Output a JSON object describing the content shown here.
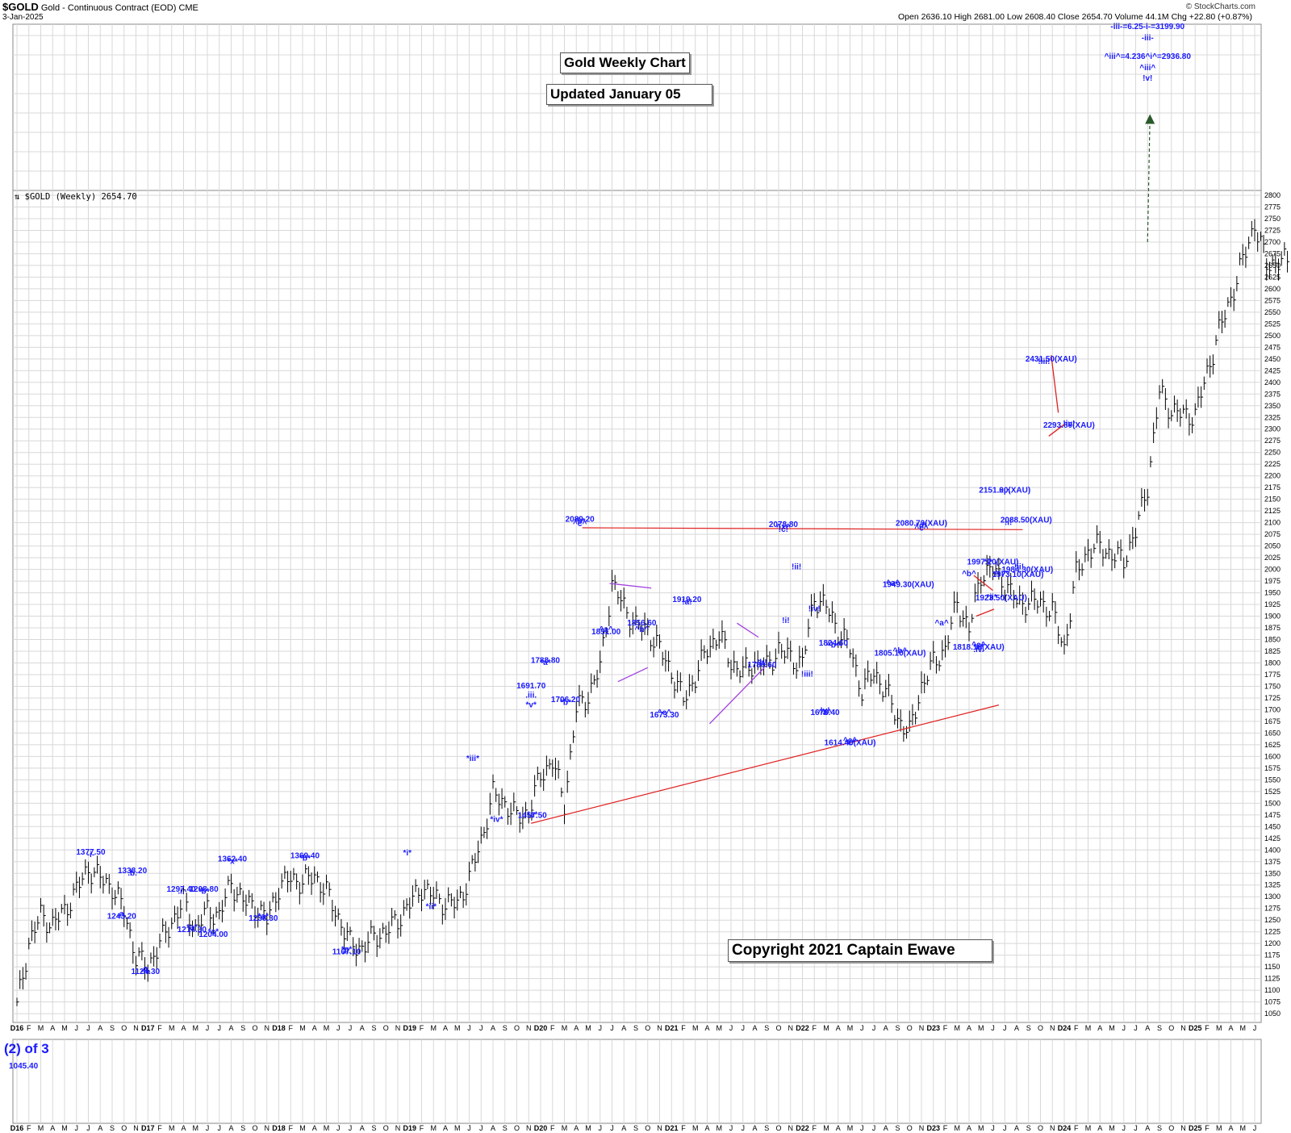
{
  "header": {
    "symbol": "$GOLD",
    "name": "Gold - Continuous Contract (EOD)",
    "exchange": "CME",
    "date": "3-Jan-2025",
    "brand": "© StockCharts.com",
    "ohlc": "Open 2636.10  High 2681.00  Low 2608.40  Close 2654.70  Volume 44.1M  Chg +22.80 (+0.87%)",
    "legend": "$GOLD (Weekly) 2654.70"
  },
  "boxes": {
    "title": "Gold Weekly Chart",
    "updated": "Updated January 05",
    "copyright": "Copyright 2021 Captain Ewave"
  },
  "lower_panel": {
    "wave": "(2) of 3",
    "value": "1045.40"
  },
  "colors": {
    "annotation": "#1a1aff",
    "price_bar": "#000000",
    "resistance": "#e02020",
    "triangle": "#a040e0",
    "projection": "#2a5a2a",
    "grid": "#d8d8d8"
  },
  "chart_data": {
    "type": "line",
    "title": "Gold Weekly Chart",
    "subtitle": "Updated January 05",
    "ylim": [
      1045,
      2800
    ],
    "yticks": [
      1050,
      1075,
      1100,
      1125,
      1150,
      1175,
      1200,
      1225,
      1250,
      1275,
      1300,
      1325,
      1350,
      1375,
      1400,
      1425,
      1450,
      1475,
      1500,
      1525,
      1550,
      1575,
      1600,
      1625,
      1650,
      1675,
      1700,
      1725,
      1750,
      1775,
      1800,
      1825,
      1850,
      1875,
      1900,
      1925,
      1950,
      1975,
      2000,
      2025,
      2050,
      2075,
      2100,
      2125,
      2150,
      2175,
      2200,
      2225,
      2250,
      2275,
      2300,
      2325,
      2350,
      2375,
      2400,
      2425,
      2450,
      2475,
      2500,
      2525,
      2550,
      2575,
      2600,
      2625,
      2650,
      2675,
      2700,
      2725,
      2750,
      2775,
      2800
    ],
    "xticks": [
      "D16",
      "F",
      "M",
      "A",
      "M",
      "J",
      "J",
      "A",
      "S",
      "O",
      "N",
      "D17",
      "F",
      "M",
      "A",
      "M",
      "J",
      "J",
      "A",
      "S",
      "O",
      "N",
      "D18",
      "F",
      "M",
      "A",
      "M",
      "J",
      "J",
      "A",
      "S",
      "O",
      "N",
      "D19",
      "F",
      "M",
      "A",
      "M",
      "J",
      "J",
      "A",
      "S",
      "O",
      "N",
      "D20",
      "F",
      "M",
      "A",
      "M",
      "J",
      "J",
      "A",
      "S",
      "O",
      "N",
      "D21",
      "F",
      "M",
      "A",
      "M",
      "J",
      "J",
      "A",
      "S",
      "O",
      "N",
      "D22",
      "F",
      "M",
      "A",
      "M",
      "J",
      "J",
      "A",
      "S",
      "O",
      "N",
      "D23",
      "F",
      "M",
      "A",
      "M",
      "J",
      "J",
      "A",
      "S",
      "O",
      "N",
      "D24",
      "F",
      "M",
      "A",
      "M",
      "J",
      "J",
      "A",
      "S",
      "O",
      "N",
      "D25",
      "F",
      "M",
      "A",
      "M",
      "J"
    ],
    "series": [
      {
        "name": "$GOLD (Weekly)",
        "points": [
          {
            "x": 0,
            "y": 1065
          },
          {
            "x": 1,
            "y": 1200
          },
          {
            "x": 2,
            "y": 1260
          },
          {
            "x": 3,
            "y": 1240
          },
          {
            "x": 4,
            "y": 1270
          },
          {
            "x": 5,
            "y": 1315
          },
          {
            "x": 6,
            "y": 1360
          },
          {
            "x": 7,
            "y": 1340
          },
          {
            "x": 8,
            "y": 1320
          },
          {
            "x": 9,
            "y": 1270
          },
          {
            "x": 10,
            "y": 1170
          },
          {
            "x": 11,
            "y": 1150
          },
          {
            "x": 12,
            "y": 1200
          },
          {
            "x": 13,
            "y": 1245
          },
          {
            "x": 14,
            "y": 1290
          },
          {
            "x": 15,
            "y": 1230
          },
          {
            "x": 16,
            "y": 1270
          },
          {
            "x": 17,
            "y": 1260
          },
          {
            "x": 18,
            "y": 1330
          },
          {
            "x": 19,
            "y": 1290
          },
          {
            "x": 20,
            "y": 1280
          },
          {
            "x": 21,
            "y": 1250
          },
          {
            "x": 22,
            "y": 1320
          },
          {
            "x": 23,
            "y": 1340
          },
          {
            "x": 24,
            "y": 1330
          },
          {
            "x": 25,
            "y": 1345
          },
          {
            "x": 26,
            "y": 1310
          },
          {
            "x": 27,
            "y": 1255
          },
          {
            "x": 28,
            "y": 1200
          },
          {
            "x": 29,
            "y": 1190
          },
          {
            "x": 30,
            "y": 1215
          },
          {
            "x": 31,
            "y": 1225
          },
          {
            "x": 32,
            "y": 1250
          },
          {
            "x": 33,
            "y": 1285
          },
          {
            "x": 34,
            "y": 1320
          },
          {
            "x": 35,
            "y": 1300
          },
          {
            "x": 36,
            "y": 1285
          },
          {
            "x": 37,
            "y": 1285
          },
          {
            "x": 38,
            "y": 1340
          },
          {
            "x": 39,
            "y": 1420
          },
          {
            "x": 40,
            "y": 1520
          },
          {
            "x": 41,
            "y": 1500
          },
          {
            "x": 42,
            "y": 1470
          },
          {
            "x": 43,
            "y": 1480
          },
          {
            "x": 44,
            "y": 1560
          },
          {
            "x": 45,
            "y": 1590
          },
          {
            "x": 46,
            "y": 1500
          },
          {
            "x": 47,
            "y": 1700
          },
          {
            "x": 48,
            "y": 1730
          },
          {
            "x": 49,
            "y": 1790
          },
          {
            "x": 50,
            "y": 1970
          },
          {
            "x": 51,
            "y": 1920
          },
          {
            "x": 52,
            "y": 1880
          },
          {
            "x": 53,
            "y": 1870
          },
          {
            "x": 54,
            "y": 1830
          },
          {
            "x": 55,
            "y": 1780
          },
          {
            "x": 56,
            "y": 1720
          },
          {
            "x": 57,
            "y": 1770
          },
          {
            "x": 58,
            "y": 1830
          },
          {
            "x": 59,
            "y": 1860
          },
          {
            "x": 60,
            "y": 1800
          },
          {
            "x": 61,
            "y": 1780
          },
          {
            "x": 62,
            "y": 1800
          },
          {
            "x": 63,
            "y": 1790
          },
          {
            "x": 64,
            "y": 1830
          },
          {
            "x": 65,
            "y": 1810
          },
          {
            "x": 66,
            "y": 1800
          },
          {
            "x": 67,
            "y": 1940
          },
          {
            "x": 68,
            "y": 1920
          },
          {
            "x": 69,
            "y": 1870
          },
          {
            "x": 70,
            "y": 1830
          },
          {
            "x": 71,
            "y": 1740
          },
          {
            "x": 72,
            "y": 1780
          },
          {
            "x": 73,
            "y": 1740
          },
          {
            "x": 74,
            "y": 1680
          },
          {
            "x": 75,
            "y": 1650
          },
          {
            "x": 76,
            "y": 1750
          },
          {
            "x": 77,
            "y": 1800
          },
          {
            "x": 78,
            "y": 1830
          },
          {
            "x": 79,
            "y": 1930
          },
          {
            "x": 80,
            "y": 1870
          },
          {
            "x": 81,
            "y": 1990
          },
          {
            "x": 82,
            "y": 2000
          },
          {
            "x": 83,
            "y": 1970
          },
          {
            "x": 84,
            "y": 1930
          },
          {
            "x": 85,
            "y": 1930
          },
          {
            "x": 86,
            "y": 1930
          },
          {
            "x": 87,
            "y": 1910
          },
          {
            "x": 88,
            "y": 1830
          },
          {
            "x": 89,
            "y": 1990
          },
          {
            "x": 90,
            "y": 2040
          },
          {
            "x": 91,
            "y": 2050
          },
          {
            "x": 92,
            "y": 2030
          },
          {
            "x": 93,
            "y": 2020
          },
          {
            "x": 94,
            "y": 2080
          },
          {
            "x": 95,
            "y": 2180
          },
          {
            "x": 96,
            "y": 2380
          },
          {
            "x": 97,
            "y": 2340
          },
          {
            "x": 98,
            "y": 2330
          },
          {
            "x": 99,
            "y": 2330
          },
          {
            "x": 100,
            "y": 2420
          },
          {
            "x": 101,
            "y": 2510
          },
          {
            "x": 102,
            "y": 2580
          },
          {
            "x": 103,
            "y": 2660
          },
          {
            "x": 104,
            "y": 2740
          },
          {
            "x": 105,
            "y": 2650
          },
          {
            "x": 106,
            "y": 2660
          },
          {
            "x": 107,
            "y": 2655
          }
        ]
      }
    ],
    "annotations": [
      {
        "text": "1377.50",
        "x": 6.2,
        "y": 1380
      },
      {
        "text": "-i-",
        "x": 6.2,
        "y": 1375
      },
      {
        "text": "1338.20",
        "x": 9.7,
        "y": 1340
      },
      {
        "text": ".b.",
        "x": 9.7,
        "y": 1335
      },
      {
        "text": ".a.",
        "x": 8.8,
        "y": 1248
      },
      {
        "text": "1243.20",
        "x": 8.8,
        "y": 1243
      },
      {
        "text": ".c.",
        "x": 10.8,
        "y": 1130
      },
      {
        "text": "-ii-",
        "x": 10.8,
        "y": 1125
      },
      {
        "text": "1124.30",
        "x": 10.8,
        "y": 1124
      },
      {
        "text": "1297.40",
        "x": 13.8,
        "y": 1300
      },
      {
        "text": ".i.",
        "x": 13.8,
        "y": 1296
      },
      {
        "text": "1298.80",
        "x": 15.7,
        "y": 1300
      },
      {
        "text": "*b*",
        "x": 15.7,
        "y": 1296
      },
      {
        "text": "*a*",
        "x": 14.7,
        "y": 1219
      },
      {
        "text": "1214.30",
        "x": 14.7,
        "y": 1214
      },
      {
        "text": "*c*",
        "x": 16.5,
        "y": 1210
      },
      {
        "text": "1204.00",
        "x": 16.5,
        "y": 1204
      },
      {
        "text": "1362.40",
        "x": 18.1,
        "y": 1365
      },
      {
        "text": "*x*",
        "x": 18.1,
        "y": 1360
      },
      {
        "text": "*a*",
        "x": 20.7,
        "y": 1243
      },
      {
        "text": "1238.30",
        "x": 20.7,
        "y": 1238
      },
      {
        "text": "1369.40",
        "x": 24.2,
        "y": 1372
      },
      {
        "text": "*b*",
        "x": 24.2,
        "y": 1367
      },
      {
        "text": "*c*",
        "x": 27.7,
        "y": 1172
      },
      {
        "text": ".ii.",
        "x": 27.7,
        "y": 1168
      },
      {
        "text": "1167.10",
        "x": 27.7,
        "y": 1167
      },
      {
        "text": "*i*",
        "x": 32.8,
        "y": 1378
      },
      {
        "text": "*ii*",
        "x": 34.8,
        "y": 1263
      },
      {
        "text": "*iii*",
        "x": 38.3,
        "y": 1580
      },
      {
        "text": "*iv*",
        "x": 40.3,
        "y": 1450
      },
      {
        "text": "*a*",
        "x": 43.3,
        "y": 1460
      },
      {
        "text": "1457.50",
        "x": 43.3,
        "y": 1458
      },
      {
        "text": "1691.70",
        "x": 43.2,
        "y": 1735
      },
      {
        "text": ".iii.",
        "x": 43.2,
        "y": 1715
      },
      {
        "text": "*v*",
        "x": 43.2,
        "y": 1695
      },
      {
        "text": "1788.80",
        "x": 44.4,
        "y": 1790
      },
      {
        "text": "*a*",
        "x": 44.4,
        "y": 1785
      },
      {
        "text": "*b*",
        "x": 46.1,
        "y": 1700
      },
      {
        "text": "1706.20",
        "x": 46.1,
        "y": 1706
      },
      {
        "text": "2089.20",
        "x": 47.3,
        "y": 2092
      },
      {
        "text": "*b*",
        "x": 47.3,
        "y": 2087
      },
      {
        "text": "^c^",
        "x": 47.3,
        "y": 2082
      },
      {
        "text": "^a^",
        "x": 49.5,
        "y": 1856
      },
      {
        "text": "1851.00",
        "x": 49.5,
        "y": 1851
      },
      {
        "text": "1856.60",
        "x": 52.5,
        "y": 1870
      },
      {
        "text": "^b^",
        "x": 52.5,
        "y": 1856
      },
      {
        "text": "^c^",
        "x": 54.4,
        "y": 1678
      },
      {
        "text": "1673.30",
        "x": 54.4,
        "y": 1673
      },
      {
        "text": "1919.20",
        "x": 56.3,
        "y": 1920
      },
      {
        "text": "!a!",
        "x": 56.3,
        "y": 1915
      },
      {
        "text": "!b!",
        "x": 62.6,
        "y": 1785
      },
      {
        "text": "1780.60",
        "x": 62.6,
        "y": 1780
      },
      {
        "text": "2078.80",
        "x": 64.4,
        "y": 2080
      },
      {
        "text": "^x^",
        "x": 64.4,
        "y": 2075
      },
      {
        "text": "!c!",
        "x": 64.4,
        "y": 2070
      },
      {
        "text": "!ii!",
        "x": 65.5,
        "y": 1990
      },
      {
        "text": "!i!",
        "x": 64.6,
        "y": 1875
      },
      {
        "text": "!iv!",
        "x": 67.0,
        "y": 1900
      },
      {
        "text": "!iii!",
        "x": 66.4,
        "y": 1760
      },
      {
        "text": "1824.60",
        "x": 68.6,
        "y": 1827
      },
      {
        "text": "^b^",
        "x": 68.6,
        "y": 1822
      },
      {
        "text": "!v!",
        "x": 67.9,
        "y": 1683
      },
      {
        "text": "^a^",
        "x": 67.9,
        "y": 1678
      },
      {
        "text": "1678.40",
        "x": 67.9,
        "y": 1678
      },
      {
        "text": "^c^",
        "x": 70.0,
        "y": 1619
      },
      {
        "text": "*c*",
        "x": 70.0,
        "y": 1614
      },
      {
        "text": "1614.40(XAU)",
        "x": 70.0,
        "y": 1614
      },
      {
        "text": "^a^",
        "x": 73.6,
        "y": 1955
      },
      {
        "text": "1949.30(XAU)",
        "x": 74.9,
        "y": 1952
      },
      {
        "text": "^b^",
        "x": 74.2,
        "y": 1810
      },
      {
        "text": "1805.10(XAU)",
        "x": 74.2,
        "y": 1805
      },
      {
        "text": "2080.70(XAU)",
        "x": 76.0,
        "y": 2083
      },
      {
        "text": "*d*",
        "x": 76.0,
        "y": 2078
      },
      {
        "text": "^c^",
        "x": 76.0,
        "y": 2073
      },
      {
        "text": "^a^",
        "x": 77.7,
        "y": 1870
      },
      {
        "text": "^b^",
        "x": 80.0,
        "y": 1975
      },
      {
        "text": "^c^",
        "x": 80.8,
        "y": 1823
      },
      {
        "text": "*e*",
        "x": 80.8,
        "y": 1818
      },
      {
        "text": ".iv.",
        "x": 80.8,
        "y": 1813
      },
      {
        "text": "1818.10(XAU)",
        "x": 80.8,
        "y": 1818
      },
      {
        "text": "*i*",
        "x": 81.6,
        "y": 2000
      },
      {
        "text": "1997.20(XAU)",
        "x": 82.0,
        "y": 2000
      },
      {
        "text": "*ii*",
        "x": 81.9,
        "y": 1925
      },
      {
        "text": "1923.50(XAU)",
        "x": 82.7,
        "y": 1923
      },
      {
        "text": "1973.10(XAU)",
        "x": 84.1,
        "y": 1973
      },
      {
        "text": "1984.30(XAU)",
        "x": 84.9,
        "y": 1984
      },
      {
        "text": "!ii!",
        "x": 84.2,
        "y": 1990
      },
      {
        "text": "^ii^",
        "x": 82.7,
        "y": 1975
      },
      {
        "text": "2151.00(XAU)",
        "x": 83.0,
        "y": 2154
      },
      {
        "text": "^i^",
        "x": 83.0,
        "y": 2149
      },
      {
        "text": "2088.50(XAU)",
        "x": 84.8,
        "y": 2090
      },
      {
        "text": "!i!",
        "x": 83.3,
        "y": 2085
      },
      {
        "text": "2431.50(XAU)",
        "x": 86.9,
        "y": 2434
      },
      {
        "text": "!iii!",
        "x": 86.3,
        "y": 2429
      },
      {
        "text": "!iv!",
        "x": 88.4,
        "y": 2296
      },
      {
        "text": "2293.80(XAU)",
        "x": 88.4,
        "y": 2293
      },
      {
        "text": "-iii-=6.25-i-=3199.90",
        "x": 95.0,
        "y": 3200
      },
      {
        "text": "-iii-",
        "x": 95.0,
        "y": 3180
      },
      {
        "text": "^iii^=4.236^i^=2936.80",
        "x": 95.0,
        "y": 2937
      },
      {
        "text": "^iii^",
        "x": 95.0,
        "y": 2920
      },
      {
        "text": "!v!",
        "x": 95.0,
        "y": 2900
      }
    ],
    "lines": [
      {
        "name": "resistance",
        "points": [
          [
            47.5,
            2089
          ],
          [
            84.5,
            2085
          ]
        ]
      },
      {
        "name": "support",
        "points": [
          [
            43.2,
            1457
          ],
          [
            82.5,
            1710
          ]
        ]
      },
      {
        "name": "projection",
        "points": [
          [
            95.0,
            2700
          ],
          [
            95.2,
            2970
          ]
        ]
      }
    ]
  }
}
